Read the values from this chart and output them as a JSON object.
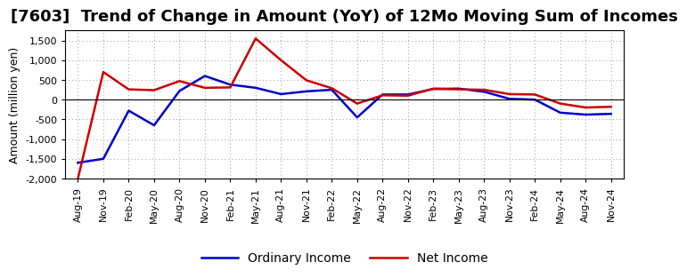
{
  "title": "[7603]  Trend of Change in Amount (YoY) of 12Mo Moving Sum of Incomes",
  "ylabel": "Amount (million yen)",
  "ylim": [
    -2000,
    1750
  ],
  "yticks": [
    -2000,
    -1500,
    -1000,
    -500,
    0,
    500,
    1000,
    1500
  ],
  "background_color": "#ffffff",
  "plot_bg_color": "#ffffff",
  "grid_color": "#999999",
  "x_labels": [
    "Aug-19",
    "Nov-19",
    "Feb-20",
    "May-20",
    "Aug-20",
    "Nov-20",
    "Feb-21",
    "May-21",
    "Aug-21",
    "Nov-21",
    "Feb-22",
    "May-22",
    "Aug-22",
    "Nov-22",
    "Feb-23",
    "May-23",
    "Aug-23",
    "Nov-23",
    "Feb-24",
    "May-24",
    "Aug-24",
    "Nov-24"
  ],
  "ordinary_income": [
    -1600,
    -1500,
    -280,
    -650,
    220,
    600,
    380,
    300,
    140,
    210,
    250,
    -450,
    130,
    130,
    270,
    280,
    200,
    20,
    0,
    -330,
    -380,
    -360
  ],
  "net_income": [
    -2000,
    700,
    260,
    240,
    470,
    300,
    310,
    1550,
    1000,
    490,
    290,
    -100,
    110,
    100,
    280,
    260,
    250,
    140,
    130,
    -100,
    -200,
    -180
  ],
  "ordinary_color": "#0000cc",
  "net_color": "#cc0000",
  "line_width": 1.8,
  "title_fontsize": 13,
  "title_fontweight": "bold",
  "legend_labels": [
    "Ordinary Income",
    "Net Income"
  ],
  "legend_fontsize": 10
}
